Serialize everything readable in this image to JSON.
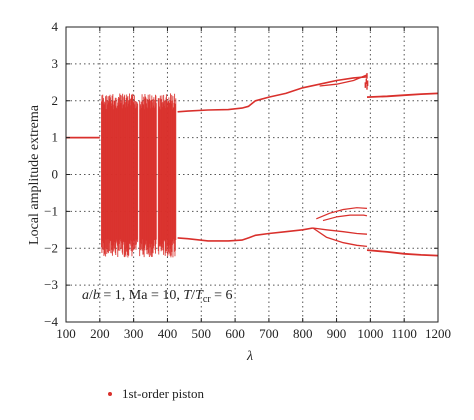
{
  "chart_data": {
    "type": "scatter",
    "xlabel": "λ",
    "ylabel": "Local amplitude extrema",
    "xlim": [
      100,
      1200
    ],
    "ylim": [
      -4,
      4
    ],
    "xticks": [
      100,
      200,
      300,
      400,
      500,
      600,
      700,
      800,
      900,
      1000,
      1100,
      1200
    ],
    "yticks": [
      -4,
      -3,
      -2,
      -1,
      0,
      1,
      2,
      3,
      4
    ],
    "x_tick_labels": [
      "100",
      "200",
      "300",
      "400",
      "500",
      "600",
      "700",
      "800",
      "900",
      "1000",
      "1100",
      "1200"
    ],
    "y_tick_labels": [
      "−4",
      "−3",
      "−2",
      "−1",
      "0",
      "1",
      "2",
      "3",
      "4"
    ],
    "grid": true,
    "legend_position": "bottom-left",
    "annotation": {
      "a": "a",
      "slash": "/",
      "b": "b",
      "eq1": " = 1,  Ma = 10,  ",
      "T": "T",
      "slash2": "/",
      "T2": "T",
      "sub": "cr",
      "eq2": " = 6"
    },
    "color": "#d9302c",
    "series": [
      {
        "name": "1st-order piston",
        "steady_region": {
          "x_range": [
            100,
            200
          ],
          "y": 1.0
        },
        "chaotic_band": {
          "x_range": [
            205,
            425
          ],
          "y_min": -2.25,
          "y_max": 2.2,
          "gaps_x": [
            315,
            370
          ]
        },
        "upper_branch": [
          [
            430,
            1.7
          ],
          [
            460,
            1.72
          ],
          [
            520,
            1.75
          ],
          [
            580,
            1.76
          ],
          [
            620,
            1.8
          ],
          [
            640,
            1.85
          ],
          [
            660,
            2.0
          ],
          [
            700,
            2.1
          ],
          [
            750,
            2.2
          ],
          [
            800,
            2.35
          ],
          [
            850,
            2.45
          ],
          [
            900,
            2.55
          ],
          [
            950,
            2.62
          ],
          [
            990,
            2.65
          ]
        ],
        "upper_split": [
          [
            850,
            2.4
          ],
          [
            900,
            2.45
          ],
          [
            950,
            2.55
          ],
          [
            990,
            2.7
          ]
        ],
        "upper_high": [
          [
            990,
            2.1
          ],
          [
            1050,
            2.12
          ],
          [
            1100,
            2.15
          ],
          [
            1150,
            2.18
          ],
          [
            1200,
            2.2
          ]
        ],
        "lower_branch": [
          [
            430,
            -1.72
          ],
          [
            460,
            -1.74
          ],
          [
            520,
            -1.8
          ],
          [
            580,
            -1.8
          ],
          [
            620,
            -1.78
          ],
          [
            640,
            -1.72
          ],
          [
            660,
            -1.65
          ],
          [
            700,
            -1.6
          ],
          [
            750,
            -1.55
          ],
          [
            800,
            -1.5
          ],
          [
            830,
            -1.45
          ]
        ],
        "lower_split_a": [
          [
            830,
            -1.45
          ],
          [
            870,
            -1.7
          ],
          [
            920,
            -1.85
          ],
          [
            960,
            -1.92
          ],
          [
            990,
            -1.95
          ]
        ],
        "lower_split_b": [
          [
            830,
            -1.45
          ],
          [
            870,
            -1.5
          ],
          [
            920,
            -1.55
          ],
          [
            960,
            -1.6
          ],
          [
            990,
            -1.62
          ]
        ],
        "mid_branch": [
          [
            840,
            -1.2
          ],
          [
            880,
            -1.05
          ],
          [
            920,
            -0.95
          ],
          [
            960,
            -0.9
          ],
          [
            990,
            -0.92
          ]
        ],
        "mid_branch_2": [
          [
            860,
            -1.25
          ],
          [
            900,
            -1.15
          ],
          [
            940,
            -1.1
          ],
          [
            980,
            -1.1
          ],
          [
            990,
            -1.12
          ]
        ],
        "lower_high": [
          [
            990,
            -2.05
          ],
          [
            1050,
            -2.1
          ],
          [
            1100,
            -2.15
          ],
          [
            1150,
            -2.18
          ],
          [
            1200,
            -2.2
          ]
        ]
      }
    ]
  }
}
